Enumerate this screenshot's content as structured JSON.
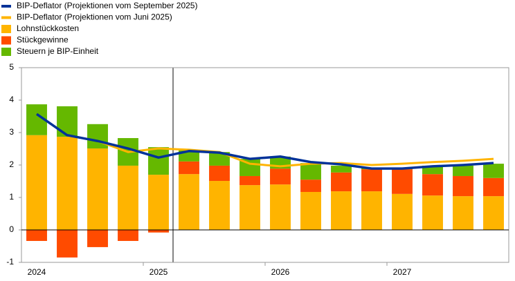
{
  "chart_data": {
    "type": "bar",
    "stacked": true,
    "categories": [
      "2024",
      null,
      null,
      null,
      "2025",
      null,
      null,
      null,
      "2026",
      null,
      null,
      null,
      "2027",
      null,
      null,
      null
    ],
    "series": [
      {
        "name": "BIP-Deflator (Projektionen vom September 2025)",
        "type": "line",
        "color": "#003299",
        "values": [
          3.57,
          2.92,
          2.74,
          2.51,
          2.23,
          2.43,
          2.38,
          2.19,
          2.26,
          2.09,
          2.02,
          1.89,
          1.89,
          1.96,
          2.0,
          2.06
        ]
      },
      {
        "name": "BIP-Deflator (Projektionen vom Juni 2025)",
        "type": "line",
        "color": "#ffb400",
        "values": [
          null,
          null,
          2.74,
          2.4,
          2.51,
          2.47,
          2.4,
          2.04,
          1.96,
          2.04,
          2.06,
          2.0,
          2.04,
          2.09,
          2.13,
          2.19
        ]
      },
      {
        "name": "Lohnstückkosten",
        "type": "bar",
        "color": "#ffb400",
        "values": [
          2.92,
          2.87,
          2.51,
          1.98,
          1.7,
          1.72,
          1.51,
          1.38,
          1.4,
          1.17,
          1.19,
          1.19,
          1.11,
          1.06,
          1.04,
          1.04
        ]
      },
      {
        "name": "Stückgewinne",
        "type": "bar",
        "color": "#ff4b00",
        "values": [
          -0.34,
          -0.85,
          -0.53,
          -0.34,
          -0.08,
          0.39,
          0.47,
          0.28,
          0.49,
          0.38,
          0.58,
          0.68,
          0.76,
          0.66,
          0.62,
          0.56
        ]
      },
      {
        "name": "Steuern je BIP-Einheit",
        "type": "bar",
        "color": "#65b800",
        "values": [
          0.95,
          0.94,
          0.75,
          0.85,
          0.85,
          0.34,
          0.42,
          0.53,
          0.37,
          0.51,
          0.21,
          0.04,
          0.04,
          0.26,
          0.32,
          0.44
        ]
      }
    ],
    "ylim": [
      -1,
      5
    ],
    "yticks": [
      -1,
      0,
      1,
      2,
      3,
      4,
      5
    ],
    "grid": false,
    "legend": "top-left"
  }
}
